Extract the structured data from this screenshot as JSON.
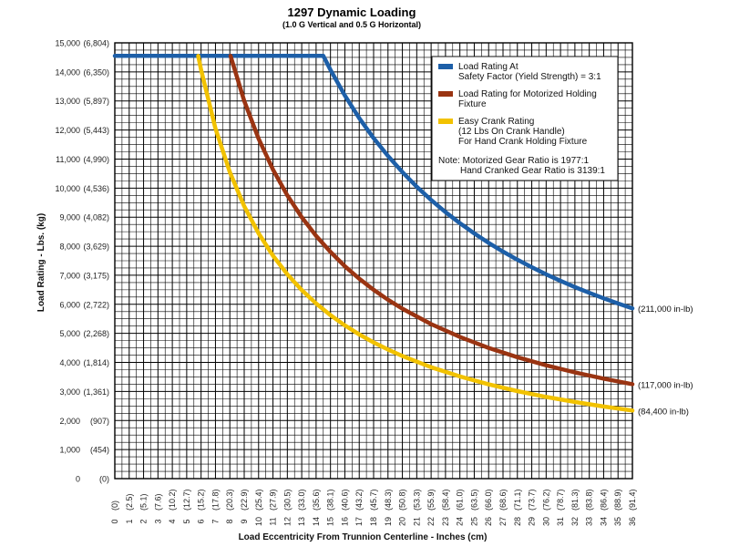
{
  "chart_data": {
    "type": "line",
    "title": "1297 Dynamic Loading",
    "subtitle": "(1.0 G Vertical and 0.5 G Horizontal)",
    "xlabel": "Load Eccentricity From Trunnion Centerline - Inches (cm)",
    "ylabel": "Load Rating - Lbs. (kg)",
    "xlim": [
      0,
      36
    ],
    "ylim": [
      0,
      15000
    ],
    "grid": true,
    "x_ticks": [
      {
        "v": 0,
        "in": "0",
        "cm": "(0)"
      },
      {
        "v": 1,
        "in": "1",
        "cm": "(2.5)"
      },
      {
        "v": 2,
        "in": "2",
        "cm": "(5.1)"
      },
      {
        "v": 3,
        "in": "3",
        "cm": "(7.6)"
      },
      {
        "v": 4,
        "in": "4",
        "cm": "(10.2)"
      },
      {
        "v": 5,
        "in": "5",
        "cm": "(12.7)"
      },
      {
        "v": 6,
        "in": "6",
        "cm": "(15.2)"
      },
      {
        "v": 7,
        "in": "7",
        "cm": "(17.8)"
      },
      {
        "v": 8,
        "in": "8",
        "cm": "(20.3)"
      },
      {
        "v": 9,
        "in": "9",
        "cm": "(22.9)"
      },
      {
        "v": 10,
        "in": "10",
        "cm": "(25.4)"
      },
      {
        "v": 11,
        "in": "11",
        "cm": "(27.9)"
      },
      {
        "v": 12,
        "in": "12",
        "cm": "(30.5)"
      },
      {
        "v": 13,
        "in": "13",
        "cm": "(33.0)"
      },
      {
        "v": 14,
        "in": "14",
        "cm": "(35.6)"
      },
      {
        "v": 15,
        "in": "15",
        "cm": "(38.1)"
      },
      {
        "v": 16,
        "in": "16",
        "cm": "(40.6)"
      },
      {
        "v": 17,
        "in": "17",
        "cm": "(43.2)"
      },
      {
        "v": 18,
        "in": "18",
        "cm": "(45.7)"
      },
      {
        "v": 19,
        "in": "19",
        "cm": "(48.3)"
      },
      {
        "v": 20,
        "in": "20",
        "cm": "(50.8)"
      },
      {
        "v": 21,
        "in": "21",
        "cm": "(53.3)"
      },
      {
        "v": 22,
        "in": "22",
        "cm": "(55.9)"
      },
      {
        "v": 23,
        "in": "23",
        "cm": "(58.4)"
      },
      {
        "v": 24,
        "in": "24",
        "cm": "(61.0)"
      },
      {
        "v": 25,
        "in": "25",
        "cm": "(63.5)"
      },
      {
        "v": 26,
        "in": "26",
        "cm": "(66.0)"
      },
      {
        "v": 27,
        "in": "27",
        "cm": "(68.6)"
      },
      {
        "v": 28,
        "in": "28",
        "cm": "(71.1)"
      },
      {
        "v": 29,
        "in": "29",
        "cm": "(73.7)"
      },
      {
        "v": 30,
        "in": "30",
        "cm": "(76.2)"
      },
      {
        "v": 31,
        "in": "31",
        "cm": "(78.7)"
      },
      {
        "v": 32,
        "in": "32",
        "cm": "(81.3)"
      },
      {
        "v": 33,
        "in": "33",
        "cm": "(83.8)"
      },
      {
        "v": 34,
        "in": "34",
        "cm": "(86.4)"
      },
      {
        "v": 35,
        "in": "35",
        "cm": "(88.9)"
      },
      {
        "v": 36,
        "in": "36",
        "cm": "(91.4)"
      }
    ],
    "y_ticks": [
      {
        "v": 0,
        "lbs": "0",
        "kg": "(0)"
      },
      {
        "v": 1000,
        "lbs": "1,000",
        "kg": "(454)"
      },
      {
        "v": 2000,
        "lbs": "2,000",
        "kg": "(907)"
      },
      {
        "v": 3000,
        "lbs": "3,000",
        "kg": "(1,361)"
      },
      {
        "v": 4000,
        "lbs": "4,000",
        "kg": "(1,814)"
      },
      {
        "v": 5000,
        "lbs": "5,000",
        "kg": "(2,268)"
      },
      {
        "v": 6000,
        "lbs": "6,000",
        "kg": "(2,722)"
      },
      {
        "v": 7000,
        "lbs": "7,000",
        "kg": "(3,175)"
      },
      {
        "v": 8000,
        "lbs": "8,000",
        "kg": "(3,629)"
      },
      {
        "v": 9000,
        "lbs": "9,000",
        "kg": "(4,082)"
      },
      {
        "v": 10000,
        "lbs": "10,000",
        "kg": "(4,536)"
      },
      {
        "v": 11000,
        "lbs": "11,000",
        "kg": "(4,990)"
      },
      {
        "v": 12000,
        "lbs": "12,000",
        "kg": "(5,443)"
      },
      {
        "v": 13000,
        "lbs": "13,000",
        "kg": "(5,897)"
      },
      {
        "v": 14000,
        "lbs": "14,000",
        "kg": "(6,350)"
      },
      {
        "v": 15000,
        "lbs": "15,000",
        "kg": "(6,804)"
      }
    ],
    "series": [
      {
        "name": "Load Rating At Safety Factor (Yield Strength) = 3:1",
        "legend_lines": [
          "Load Rating At",
          "Safety Factor (Yield Strength) = 3:1"
        ],
        "color": "#1d5fa8",
        "moment_in_lb": 211000,
        "end_label": "(211,000 in-lb)",
        "points": [
          [
            0,
            14550
          ],
          [
            14.5,
            14550
          ],
          [
            15,
            14067
          ],
          [
            16,
            13188
          ],
          [
            17,
            12412
          ],
          [
            18,
            11722
          ],
          [
            19,
            11105
          ],
          [
            20,
            10550
          ],
          [
            21,
            10048
          ],
          [
            22,
            9591
          ],
          [
            23,
            9174
          ],
          [
            24,
            8792
          ],
          [
            25,
            8440
          ],
          [
            26,
            8115
          ],
          [
            27,
            7815
          ],
          [
            28,
            7536
          ],
          [
            29,
            7276
          ],
          [
            30,
            7033
          ],
          [
            31,
            6806
          ],
          [
            32,
            6594
          ],
          [
            33,
            6394
          ],
          [
            34,
            6206
          ],
          [
            35,
            6029
          ],
          [
            36,
            5861
          ]
        ]
      },
      {
        "name": "Load Rating for Motorized Holding Fixture",
        "legend_lines": [
          "Load Rating for Motorized Holding",
          "Fixture"
        ],
        "color": "#9a3412",
        "moment_in_lb": 117000,
        "end_label": "(117,000 in-lb)",
        "points": [
          [
            8.05,
            14550
          ],
          [
            9,
            13000
          ],
          [
            10,
            11700
          ],
          [
            11,
            10636
          ],
          [
            12,
            9750
          ],
          [
            13,
            9000
          ],
          [
            14,
            8357
          ],
          [
            15,
            7800
          ],
          [
            16,
            7313
          ],
          [
            17,
            6882
          ],
          [
            18,
            6500
          ],
          [
            19,
            6158
          ],
          [
            20,
            5850
          ],
          [
            22,
            5318
          ],
          [
            24,
            4875
          ],
          [
            26,
            4500
          ],
          [
            28,
            4179
          ],
          [
            30,
            3900
          ],
          [
            32,
            3656
          ],
          [
            34,
            3441
          ],
          [
            36,
            3250
          ]
        ]
      },
      {
        "name": "Easy Crank Rating (12 Lbs On Crank Handle) For Hand Crank Holding Fixture",
        "legend_lines": [
          "Easy Crank Rating",
          "(12 Lbs On Crank Handle)",
          "For Hand Crank Holding Fixture"
        ],
        "color": "#f2c200",
        "moment_in_lb": 84400,
        "end_label": "(84,400 in-lb)",
        "points": [
          [
            5.8,
            14550
          ],
          [
            6,
            14067
          ],
          [
            7,
            12057
          ],
          [
            8,
            10550
          ],
          [
            9,
            9378
          ],
          [
            10,
            8440
          ],
          [
            11,
            7673
          ],
          [
            12,
            7033
          ],
          [
            13,
            6492
          ],
          [
            14,
            6029
          ],
          [
            15,
            5627
          ],
          [
            16,
            5275
          ],
          [
            17,
            4965
          ],
          [
            18,
            4689
          ],
          [
            19,
            4442
          ],
          [
            20,
            4220
          ],
          [
            22,
            3836
          ],
          [
            24,
            3517
          ],
          [
            26,
            3246
          ],
          [
            28,
            3014
          ],
          [
            30,
            2813
          ],
          [
            32,
            2638
          ],
          [
            34,
            2482
          ],
          [
            36,
            2344
          ]
        ]
      }
    ],
    "legend": {
      "position": "top-right",
      "note_lines": [
        "Note: Motorized Gear Ratio is 1977:1",
        "Hand Cranked Gear Ratio is 3139:1"
      ]
    }
  }
}
